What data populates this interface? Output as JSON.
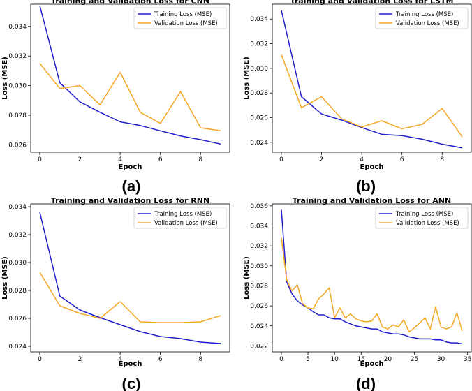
{
  "chart_data": [
    {
      "type": "line",
      "panel_label": "(a)",
      "title": "Training and Validation Loss for CNN",
      "xlabel": "Epoch",
      "ylabel": "Loss (MSE)",
      "xlim": [
        -0.45,
        9.45
      ],
      "ylim": [
        0.0255,
        0.0355
      ],
      "xticks": [
        0,
        2,
        4,
        6,
        8
      ],
      "yticks": [
        0.026,
        0.028,
        0.03,
        0.032,
        0.034
      ],
      "tick_labels_x": [
        "0",
        "2",
        "4",
        "6",
        "8"
      ],
      "tick_labels_y": [
        "0.026",
        "0.028",
        "0.030",
        "0.032",
        "0.034"
      ],
      "legend_position": "top-right",
      "x": [
        0,
        1,
        2,
        3,
        4,
        5,
        6,
        7,
        8,
        9
      ],
      "series": [
        {
          "name": "Training Loss (MSE)",
          "color": "#1f1fcc",
          "values": [
            0.0354,
            0.0302,
            0.0289,
            0.0282,
            0.02755,
            0.0273,
            0.02695,
            0.0266,
            0.02635,
            0.02605
          ]
        },
        {
          "name": "Validation Loss (MSE)",
          "color": "#f5a623",
          "values": [
            0.0315,
            0.0298,
            0.03,
            0.0287,
            0.0309,
            0.0282,
            0.02745,
            0.0296,
            0.02715,
            0.02695
          ]
        }
      ]
    },
    {
      "type": "line",
      "panel_label": "(b)",
      "title": "Training and Validation Loss for LSTM",
      "xlabel": "Epoch",
      "ylabel": "Loss (MSE)",
      "xlim": [
        -0.45,
        9.45
      ],
      "ylim": [
        0.0232,
        0.0352
      ],
      "xticks": [
        0,
        2,
        4,
        6,
        8
      ],
      "yticks": [
        0.024,
        0.026,
        0.028,
        0.03,
        0.032,
        0.034
      ],
      "tick_labels_x": [
        "0",
        "2",
        "4",
        "6",
        "8"
      ],
      "tick_labels_y": [
        "0.024",
        "0.026",
        "0.028",
        "0.030",
        "0.032",
        "0.034"
      ],
      "legend_position": "top-right",
      "x": [
        0,
        1,
        2,
        3,
        4,
        5,
        6,
        7,
        8,
        9
      ],
      "series": [
        {
          "name": "Training Loss (MSE)",
          "color": "#1f1fcc",
          "values": [
            0.0347,
            0.0277,
            0.0263,
            0.0258,
            0.0252,
            0.02465,
            0.02455,
            0.02425,
            0.02385,
            0.02355
          ]
        },
        {
          "name": "Validation Loss (MSE)",
          "color": "#f5a623",
          "values": [
            0.0311,
            0.0268,
            0.0277,
            0.0259,
            0.02525,
            0.02575,
            0.0251,
            0.02545,
            0.02675,
            0.02445
          ]
        }
      ]
    },
    {
      "type": "line",
      "panel_label": "(c)",
      "title": "Training and Validation Loss for RNN",
      "xlabel": "Epoch",
      "ylabel": "Loss (MSE)",
      "xlim": [
        -0.45,
        9.45
      ],
      "ylim": [
        0.0236,
        0.0342
      ],
      "xticks": [
        0,
        2,
        4,
        6,
        8
      ],
      "yticks": [
        0.024,
        0.026,
        0.028,
        0.03,
        0.032,
        0.034
      ],
      "tick_labels_x": [
        "0",
        "2",
        "4",
        "6",
        "8"
      ],
      "tick_labels_y": [
        "0.024",
        "0.026",
        "0.028",
        "0.030",
        "0.032",
        "0.034"
      ],
      "legend_position": "top-right",
      "x": [
        0,
        1,
        2,
        3,
        4,
        5,
        6,
        7,
        8,
        9
      ],
      "series": [
        {
          "name": "Training Loss (MSE)",
          "color": "#1f1fcc",
          "values": [
            0.0336,
            0.0276,
            0.0266,
            0.02605,
            0.02555,
            0.02505,
            0.0247,
            0.02455,
            0.0243,
            0.0242
          ]
        },
        {
          "name": "Validation Loss (MSE)",
          "color": "#f5a623",
          "values": [
            0.0293,
            0.0269,
            0.02635,
            0.026,
            0.0272,
            0.02575,
            0.0257,
            0.0257,
            0.02575,
            0.0262
          ]
        }
      ]
    },
    {
      "type": "line",
      "panel_label": "(d)",
      "title": "Training and Validation Loss for ANN",
      "xlabel": "Epoch",
      "ylabel": "Loss (MSE)",
      "xlim": [
        -1.7,
        35.7
      ],
      "ylim": [
        0.0214,
        0.0362
      ],
      "xticks": [
        0,
        5,
        10,
        15,
        20,
        25,
        30,
        35
      ],
      "yticks": [
        0.022,
        0.024,
        0.026,
        0.028,
        0.03,
        0.032,
        0.034,
        0.036
      ],
      "tick_labels_x": [
        "0",
        "5",
        "10",
        "15",
        "20",
        "25",
        "30",
        "35"
      ],
      "tick_labels_y": [
        "0.022",
        "0.024",
        "0.026",
        "0.028",
        "0.030",
        "0.032",
        "0.034",
        "0.036"
      ],
      "legend_position": "top-right",
      "x": [
        0,
        1,
        2,
        3,
        4,
        5,
        6,
        7,
        8,
        9,
        10,
        11,
        12,
        13,
        14,
        15,
        16,
        17,
        18,
        19,
        20,
        21,
        22,
        23,
        24,
        25,
        26,
        27,
        28,
        29,
        30,
        31,
        32,
        33,
        34
      ],
      "series": [
        {
          "name": "Training Loss (MSE)",
          "color": "#1f1fcc",
          "values": [
            0.0356,
            0.0284,
            0.0272,
            0.0265,
            0.0261,
            0.0258,
            0.0254,
            0.0251,
            0.0251,
            0.0248,
            0.0247,
            0.0247,
            0.0244,
            0.0242,
            0.024,
            0.0239,
            0.0238,
            0.0237,
            0.0237,
            0.0234,
            0.0233,
            0.0232,
            0.0232,
            0.0231,
            0.0229,
            0.0228,
            0.0227,
            0.0227,
            0.0227,
            0.0226,
            0.0226,
            0.0224,
            0.0223,
            0.0223,
            0.0222
          ]
        },
        {
          "name": "Validation Loss (MSE)",
          "color": "#f5a623",
          "values": [
            0.0328,
            0.0286,
            0.0275,
            0.0281,
            0.0262,
            0.0258,
            0.0257,
            0.0267,
            0.0272,
            0.0278,
            0.0248,
            0.0258,
            0.0248,
            0.0252,
            0.0247,
            0.0245,
            0.0244,
            0.0245,
            0.0252,
            0.0239,
            0.0237,
            0.0241,
            0.0239,
            0.0246,
            0.0234,
            0.0238,
            0.0243,
            0.0248,
            0.0237,
            0.0259,
            0.0239,
            0.0237,
            0.0239,
            0.0253,
            0.0235
          ]
        }
      ]
    }
  ]
}
